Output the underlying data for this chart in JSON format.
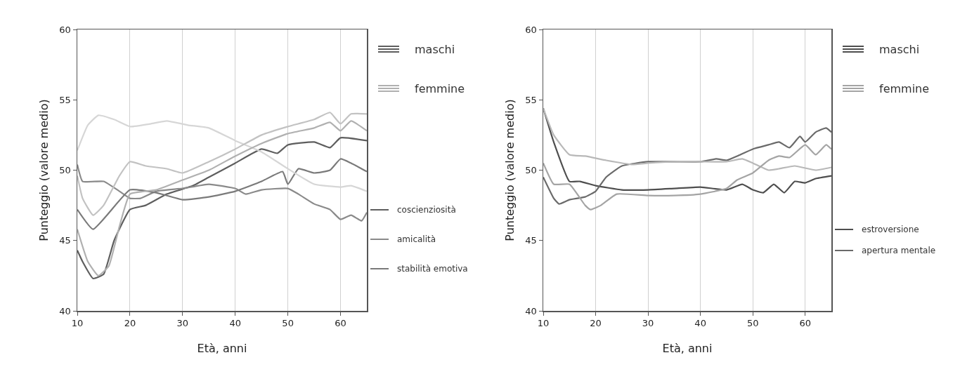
{
  "chart_data": [
    {
      "type": "line",
      "xlabel": "Età, anni",
      "ylabel": "Punteggio (valore medio)",
      "xlim": [
        10,
        65
      ],
      "xticks": [
        10,
        20,
        30,
        40,
        50,
        60
      ],
      "ylim": [
        40,
        60
      ],
      "yticks": [
        40,
        45,
        50,
        55,
        60
      ],
      "grid": "x",
      "line_style": "solid",
      "marker": "none",
      "annotations": [
        "maschi",
        "femmine",
        "coscienziosità",
        "amicalità",
        "stabilità emotiva"
      ],
      "series": [
        {
          "color": "#5e5e5e",
          "x": [
            10,
            11,
            13,
            15,
            17,
            20,
            23,
            27,
            32,
            35,
            40,
            45,
            48,
            50,
            55,
            58,
            60,
            65
          ],
          "values": [
            44.3,
            43.5,
            42.3,
            42.6,
            45,
            47.2,
            47.5,
            48.3,
            48.9,
            49.5,
            50.5,
            51.5,
            51.2,
            51.8,
            52,
            51.6,
            52.3,
            52.1
          ]
        },
        {
          "color": "#8a8a8a",
          "x": [
            10,
            11,
            15,
            18,
            20,
            22,
            25,
            30,
            35,
            40,
            42,
            45,
            50,
            52,
            55,
            58,
            60,
            62,
            64,
            65
          ],
          "values": [
            50.4,
            49.2,
            49.2,
            48.5,
            48,
            48,
            48.5,
            48.7,
            49,
            48.7,
            48.3,
            48.6,
            48.7,
            48.3,
            47.6,
            47.2,
            46.5,
            46.8,
            46.4,
            47
          ]
        },
        {
          "color": "#7a7a7a",
          "x": [
            10,
            13,
            20,
            25,
            30,
            35,
            40,
            45,
            49,
            50,
            52,
            55,
            58,
            60,
            62,
            65
          ],
          "values": [
            47.2,
            45.8,
            48.6,
            48.4,
            47.9,
            48.1,
            48.5,
            49.2,
            49.9,
            49,
            50.1,
            49.8,
            50,
            50.8,
            50.5,
            49.9
          ]
        },
        {
          "color": "#d6d6d6",
          "x": [
            10,
            12,
            14,
            17,
            20,
            24,
            27,
            31,
            35,
            40,
            45,
            50,
            55,
            60,
            62,
            65
          ],
          "values": [
            51.4,
            53.2,
            53.9,
            53.6,
            53.1,
            53.3,
            53.5,
            53.2,
            53,
            52.1,
            51.3,
            50.1,
            49,
            48.8,
            48.9,
            48.5
          ]
        },
        {
          "color": "#c2c2c2",
          "x": [
            10,
            11,
            13,
            15,
            18,
            20,
            23,
            27,
            30,
            35,
            40,
            45,
            50,
            55,
            58,
            60,
            62,
            65
          ],
          "values": [
            49.6,
            48,
            46.8,
            47.5,
            49.6,
            50.6,
            50.3,
            50.1,
            49.8,
            50.6,
            51.5,
            52.5,
            53.1,
            53.6,
            54.1,
            53.3,
            54,
            54
          ]
        },
        {
          "color": "#b0b0b0",
          "x": [
            10,
            12,
            14,
            16,
            18,
            20,
            25,
            30,
            35,
            40,
            45,
            50,
            55,
            58,
            60,
            62,
            65
          ],
          "values": [
            45.8,
            43.5,
            42.5,
            43.2,
            46,
            48.3,
            48.6,
            49.3,
            50,
            51,
            51.9,
            52.6,
            53,
            53.4,
            52.8,
            53.5,
            52.8
          ]
        }
      ]
    },
    {
      "type": "line",
      "xlabel": "Età, anni",
      "ylabel": "Punteggio (valore medio)",
      "xlim": [
        10,
        65
      ],
      "xticks": [
        10,
        20,
        30,
        40,
        50,
        60
      ],
      "ylim": [
        40,
        60
      ],
      "yticks": [
        40,
        45,
        50,
        55,
        60
      ],
      "grid": "x",
      "line_style": "solid",
      "marker": "none",
      "annotations": [
        "maschi",
        "femmine",
        "estroversione",
        "apertura mentale"
      ],
      "series": [
        {
          "color": "#4e4e4e",
          "x": [
            10,
            12,
            15,
            17,
            20,
            25,
            30,
            35,
            40,
            45,
            48,
            50,
            52,
            54,
            56,
            58,
            60,
            62,
            65
          ],
          "values": [
            54.4,
            52,
            49.2,
            49.2,
            48.9,
            48.6,
            48.6,
            48.7,
            48.8,
            48.6,
            49,
            48.6,
            48.4,
            49,
            48.4,
            49.2,
            49.1,
            49.4,
            49.6
          ]
        },
        {
          "color": "#6a6a6a",
          "x": [
            10,
            12,
            13,
            15,
            18,
            20,
            22,
            25,
            30,
            35,
            40,
            43,
            45,
            47,
            50,
            53,
            55,
            57,
            59,
            60,
            62,
            64,
            65
          ],
          "values": [
            49.5,
            48,
            47.6,
            47.9,
            48.1,
            48.5,
            49.5,
            50.3,
            50.6,
            50.6,
            50.6,
            50.8,
            50.7,
            51,
            51.5,
            51.8,
            52,
            51.6,
            52.4,
            52,
            52.7,
            53,
            52.7
          ]
        },
        {
          "color": "#b8b8b8",
          "x": [
            10,
            12,
            15,
            18,
            22,
            27,
            30,
            35,
            40,
            45,
            48,
            50,
            53,
            55,
            58,
            62,
            65
          ],
          "values": [
            54.4,
            52.5,
            51.1,
            51,
            50.7,
            50.4,
            50.5,
            50.6,
            50.6,
            50.6,
            50.8,
            50.5,
            50,
            50.1,
            50.3,
            50,
            50.2
          ]
        },
        {
          "color": "#a4a4a4",
          "x": [
            10,
            12,
            15,
            18,
            19,
            21,
            24,
            30,
            35,
            40,
            45,
            47,
            50,
            53,
            55,
            57,
            60,
            62,
            64,
            65
          ],
          "values": [
            50.5,
            49,
            49,
            47.5,
            47.2,
            47.5,
            48.3,
            48.2,
            48.2,
            48.3,
            48.7,
            49.3,
            49.8,
            50.7,
            51,
            50.9,
            51.8,
            51.1,
            51.8,
            51.5
          ]
        }
      ]
    }
  ]
}
